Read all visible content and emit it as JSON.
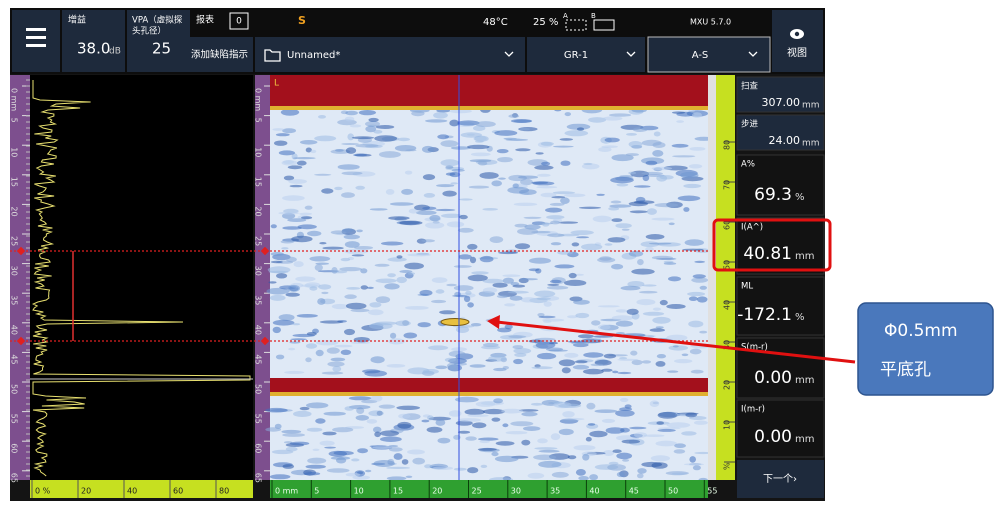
{
  "top_bar": {
    "gain": {
      "label": "增益",
      "value": "38.0",
      "unit": "dB"
    },
    "vpa": {
      "label": "VPA（虚拟探",
      "label2": "头孔径）",
      "value": "25"
    },
    "report": {
      "label": "报表",
      "count": "0"
    },
    "status": {
      "mode": "S",
      "temperature": "48°C",
      "battery": "25 %",
      "a": "A",
      "b": "B"
    },
    "version": "MXU 5.7.0",
    "view": "视图"
  },
  "toolbar": {
    "add_indication": "添加缺陷指示",
    "file": "Unnamed*",
    "group": "GR-1",
    "layout": "A-S"
  },
  "readings": [
    {
      "label": "扫查",
      "value": "307.00",
      "unit": "mm"
    },
    {
      "label": "步进",
      "value": "24.00",
      "unit": "mm"
    },
    {
      "label": "A%",
      "value": "69.3",
      "unit": "%"
    },
    {
      "label": "I(A^)",
      "value": "40.81",
      "unit": "mm"
    },
    {
      "label": "ML",
      "value": "-172.1",
      "unit": "%"
    },
    {
      "label": "S(m-r)",
      "value": "0.00",
      "unit": "mm"
    },
    {
      "label": "I(m-r)",
      "value": "0.00",
      "unit": "mm"
    }
  ],
  "next": "下一个›",
  "ascan": {
    "x_ticks": [
      "0 %",
      "20",
      "40",
      "60",
      "80"
    ],
    "y_ticks": [
      "0 mm",
      "5",
      "10",
      "15",
      "20",
      "25",
      "30",
      "35",
      "40",
      "45",
      "50",
      "55",
      "60",
      "65"
    ]
  },
  "sscan": {
    "corner": "L",
    "x_ticks": [
      "0 mm",
      "5",
      "10",
      "15",
      "20",
      "25",
      "30",
      "35",
      "40",
      "45",
      "50",
      "55"
    ],
    "y_ticks": [
      "0 mm",
      "5",
      "10",
      "15",
      "20",
      "25",
      "30",
      "35",
      "40",
      "45",
      "50",
      "55",
      "60",
      "65"
    ]
  },
  "gauge_ticks": [
    "%",
    "10",
    "20",
    "30",
    "40",
    "50",
    "60",
    "70",
    "80"
  ],
  "callout": {
    "line1": "Φ0.5mm",
    "line2": "平底孔"
  }
}
